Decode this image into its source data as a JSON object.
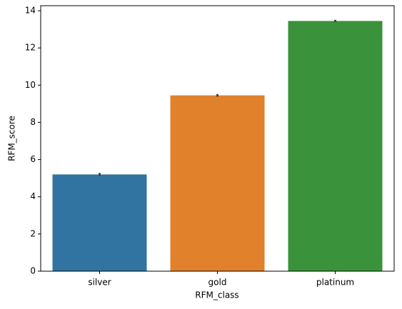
{
  "chart_data": {
    "type": "bar",
    "x_label": "RFM_class",
    "y_label": "RFM_score",
    "categories": [
      "silver",
      "gold",
      "platinum"
    ],
    "values": [
      5.2,
      9.45,
      13.45
    ],
    "errors": [
      0.08,
      0.07,
      0.06
    ],
    "colors": [
      "#3274a1",
      "#e1812c",
      "#3a923a"
    ],
    "error_color": "#444444",
    "ylim": [
      0,
      14.27
    ],
    "yticks": [
      0,
      2,
      4,
      6,
      8,
      10,
      12,
      14
    ],
    "grid": false
  }
}
